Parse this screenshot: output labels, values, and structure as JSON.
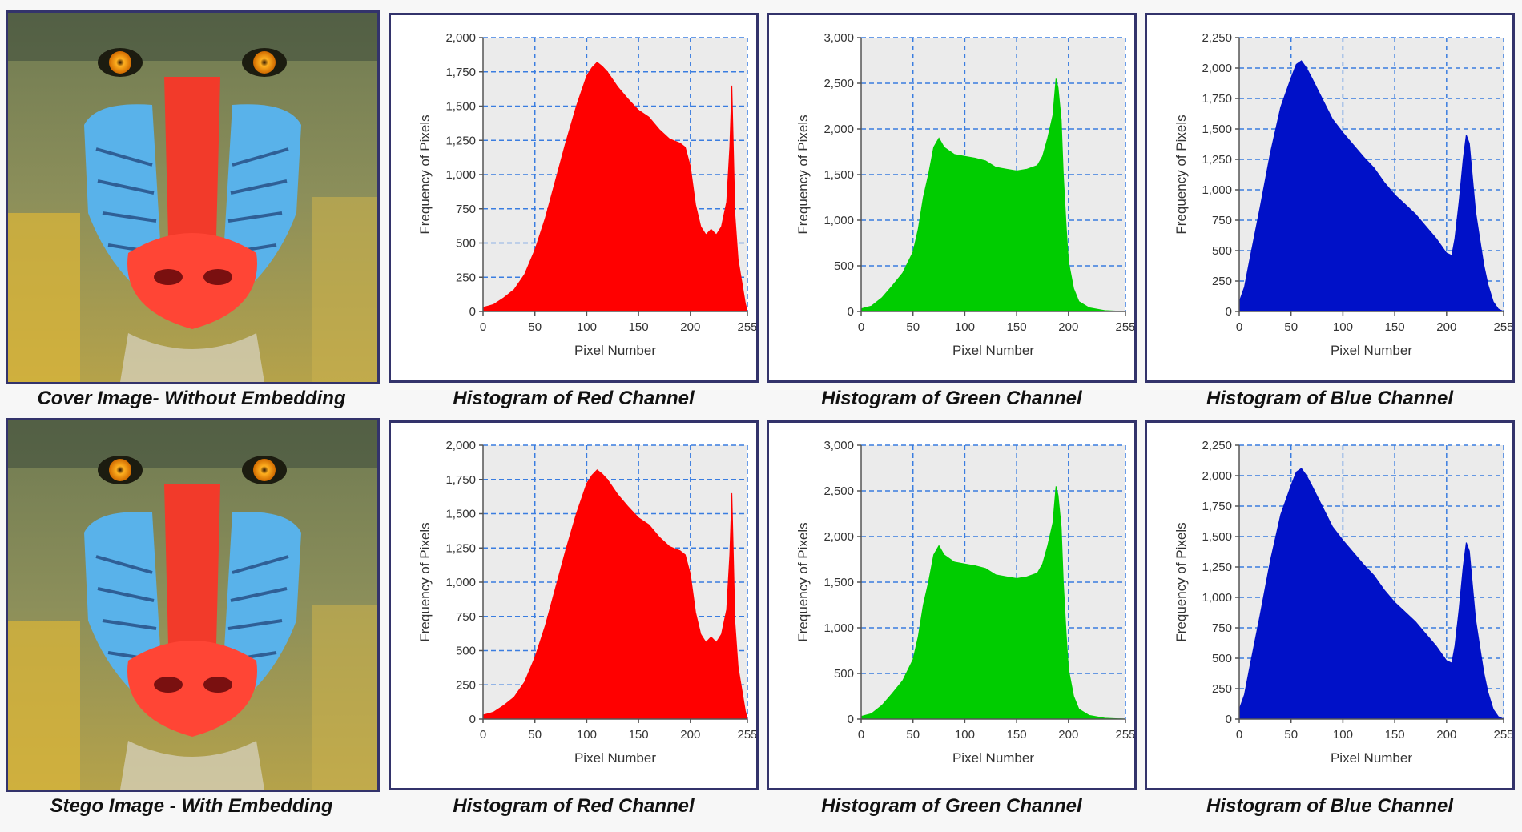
{
  "colors": {
    "red": "#ff0000",
    "green": "#00cc00",
    "blue": "#0011c8",
    "grid": "#3a7de0",
    "plot_bg": "#ebebeb"
  },
  "rows": [
    {
      "image_caption": "Cover Image- Without Embedding",
      "image_alt": "baboon-mandrill-face",
      "histograms": [
        {
          "caption": "Histogram of Red Channel",
          "channel": "red"
        },
        {
          "caption": "Histogram of Green Channel",
          "channel": "green"
        },
        {
          "caption": "Histogram of Blue Channel",
          "channel": "blue"
        }
      ]
    },
    {
      "image_caption": "Stego Image - With Embedding",
      "image_alt": "baboon-mandrill-face",
      "histograms": [
        {
          "caption": "Histogram of Red Channel",
          "channel": "red"
        },
        {
          "caption": "Histogram of Green Channel",
          "channel": "green"
        },
        {
          "caption": "Histogram of Blue Channel",
          "channel": "blue"
        }
      ]
    }
  ],
  "chart_data": [
    {
      "type": "area",
      "title": "Histogram of Red Channel",
      "xlabel": "Pixel Number",
      "ylabel": "Frequency of Pixels",
      "xlim": [
        0,
        255
      ],
      "ylim": [
        0,
        2000
      ],
      "xticks": [
        0,
        50,
        100,
        150,
        200,
        255
      ],
      "yticks": [
        0,
        250,
        500,
        750,
        1000,
        1250,
        1500,
        1750,
        2000
      ],
      "ytick_labels": [
        "0",
        "250",
        "500",
        "750",
        "1,000",
        "1,250",
        "1,500",
        "1,750",
        "2,000"
      ],
      "color": "#ff0000",
      "x": [
        0,
        5,
        10,
        20,
        30,
        40,
        50,
        60,
        70,
        80,
        90,
        100,
        105,
        110,
        115,
        120,
        130,
        140,
        150,
        160,
        170,
        180,
        190,
        195,
        200,
        205,
        210,
        215,
        220,
        225,
        230,
        235,
        238,
        240,
        243,
        246,
        250,
        253,
        255
      ],
      "y": [
        30,
        40,
        50,
        100,
        160,
        270,
        450,
        680,
        960,
        1240,
        1500,
        1720,
        1780,
        1820,
        1790,
        1750,
        1640,
        1550,
        1470,
        1420,
        1330,
        1260,
        1230,
        1200,
        1060,
        780,
        620,
        560,
        600,
        560,
        620,
        800,
        1200,
        1650,
        700,
        380,
        200,
        60,
        0
      ]
    },
    {
      "type": "area",
      "title": "Histogram of Green Channel",
      "xlabel": "Pixel Number",
      "ylabel": "Frequency of Pixels",
      "xlim": [
        0,
        255
      ],
      "ylim": [
        0,
        3000
      ],
      "xticks": [
        0,
        50,
        100,
        150,
        200,
        255
      ],
      "yticks": [
        0,
        500,
        1000,
        1500,
        2000,
        2500,
        3000
      ],
      "ytick_labels": [
        "0",
        "500",
        "1,000",
        "1,500",
        "2,000",
        "2,500",
        "3,000"
      ],
      "color": "#00cc00",
      "x": [
        0,
        10,
        20,
        30,
        40,
        50,
        55,
        60,
        65,
        70,
        75,
        80,
        90,
        100,
        110,
        120,
        130,
        140,
        150,
        160,
        170,
        175,
        180,
        185,
        188,
        190,
        193,
        195,
        198,
        200,
        205,
        210,
        220,
        235,
        255
      ],
      "y": [
        30,
        60,
        150,
        280,
        420,
        650,
        900,
        1250,
        1500,
        1800,
        1900,
        1800,
        1720,
        1700,
        1680,
        1650,
        1580,
        1560,
        1540,
        1560,
        1600,
        1700,
        1900,
        2150,
        2550,
        2450,
        2100,
        1500,
        900,
        550,
        250,
        110,
        40,
        10,
        0
      ]
    },
    {
      "type": "area",
      "title": "Histogram of Blue Channel",
      "xlabel": "Pixel Number",
      "ylabel": "Frequency of Pixels",
      "xlim": [
        0,
        255
      ],
      "ylim": [
        0,
        2250
      ],
      "xticks": [
        0,
        50,
        100,
        150,
        200,
        255
      ],
      "yticks": [
        0,
        250,
        500,
        750,
        1000,
        1250,
        1500,
        1750,
        2000,
        2250
      ],
      "ytick_labels": [
        "0",
        "250",
        "500",
        "750",
        "1,000",
        "1,250",
        "1,500",
        "1,750",
        "2,000",
        "2,250"
      ],
      "color": "#0011c8",
      "x": [
        0,
        5,
        10,
        20,
        30,
        40,
        50,
        55,
        60,
        65,
        70,
        80,
        90,
        100,
        110,
        120,
        130,
        140,
        150,
        160,
        170,
        180,
        190,
        200,
        205,
        208,
        212,
        216,
        219,
        222,
        225,
        228,
        232,
        236,
        240,
        245,
        250,
        255
      ],
      "y": [
        80,
        200,
        420,
        850,
        1300,
        1680,
        1920,
        2030,
        2060,
        2000,
        1920,
        1750,
        1580,
        1470,
        1370,
        1270,
        1180,
        1060,
        960,
        880,
        800,
        700,
        600,
        480,
        460,
        600,
        900,
        1250,
        1450,
        1380,
        1100,
        820,
        600,
        380,
        220,
        80,
        20,
        0
      ]
    },
    {
      "type": "area",
      "title": "Histogram of Red Channel",
      "xlabel": "Pixel Number",
      "ylabel": "Frequency of Pixels",
      "xlim": [
        0,
        255
      ],
      "ylim": [
        0,
        2000
      ],
      "xticks": [
        0,
        50,
        100,
        150,
        200,
        255
      ],
      "yticks": [
        0,
        250,
        500,
        750,
        1000,
        1250,
        1500,
        1750,
        2000
      ],
      "ytick_labels": [
        "0",
        "250",
        "500",
        "750",
        "1,000",
        "1,250",
        "1,500",
        "1,750",
        "2,000"
      ],
      "color": "#ff0000",
      "x": [
        0,
        5,
        10,
        20,
        30,
        40,
        50,
        60,
        70,
        80,
        90,
        100,
        105,
        110,
        115,
        120,
        130,
        140,
        150,
        160,
        170,
        180,
        190,
        195,
        200,
        205,
        210,
        215,
        220,
        225,
        230,
        235,
        238,
        240,
        243,
        246,
        250,
        253,
        255
      ],
      "y": [
        30,
        40,
        50,
        100,
        160,
        270,
        450,
        680,
        960,
        1240,
        1500,
        1720,
        1780,
        1820,
        1790,
        1750,
        1640,
        1550,
        1470,
        1420,
        1330,
        1260,
        1230,
        1200,
        1060,
        780,
        620,
        560,
        600,
        560,
        620,
        800,
        1200,
        1650,
        700,
        380,
        200,
        60,
        0
      ]
    },
    {
      "type": "area",
      "title": "Histogram of Green Channel",
      "xlabel": "Pixel Number",
      "ylabel": "Frequency of Pixels",
      "xlim": [
        0,
        255
      ],
      "ylim": [
        0,
        3000
      ],
      "xticks": [
        0,
        50,
        100,
        150,
        200,
        255
      ],
      "yticks": [
        0,
        500,
        1000,
        1500,
        2000,
        2500,
        3000
      ],
      "ytick_labels": [
        "0",
        "500",
        "1,000",
        "1,500",
        "2,000",
        "2,500",
        "3,000"
      ],
      "color": "#00cc00",
      "x": [
        0,
        10,
        20,
        30,
        40,
        50,
        55,
        60,
        65,
        70,
        75,
        80,
        90,
        100,
        110,
        120,
        130,
        140,
        150,
        160,
        170,
        175,
        180,
        185,
        188,
        190,
        193,
        195,
        198,
        200,
        205,
        210,
        220,
        235,
        255
      ],
      "y": [
        30,
        60,
        150,
        280,
        420,
        650,
        900,
        1250,
        1500,
        1800,
        1900,
        1800,
        1720,
        1700,
        1680,
        1650,
        1580,
        1560,
        1540,
        1560,
        1600,
        1700,
        1900,
        2150,
        2550,
        2450,
        2100,
        1500,
        900,
        550,
        250,
        110,
        40,
        10,
        0
      ]
    },
    {
      "type": "area",
      "title": "Histogram of Blue Channel",
      "xlabel": "Pixel Number",
      "ylabel": "Frequency of Pixels",
      "xlim": [
        0,
        255
      ],
      "ylim": [
        0,
        2250
      ],
      "xticks": [
        0,
        50,
        100,
        150,
        200,
        255
      ],
      "yticks": [
        0,
        250,
        500,
        750,
        1000,
        1250,
        1500,
        1750,
        2000,
        2250
      ],
      "ytick_labels": [
        "0",
        "250",
        "500",
        "750",
        "1,000",
        "1,250",
        "1,500",
        "1,750",
        "2,000",
        "2,250"
      ],
      "color": "#0011c8",
      "x": [
        0,
        5,
        10,
        20,
        30,
        40,
        50,
        55,
        60,
        65,
        70,
        80,
        90,
        100,
        110,
        120,
        130,
        140,
        150,
        160,
        170,
        180,
        190,
        200,
        205,
        208,
        212,
        216,
        219,
        222,
        225,
        228,
        232,
        236,
        240,
        245,
        250,
        255
      ],
      "y": [
        80,
        200,
        420,
        850,
        1300,
        1680,
        1920,
        2030,
        2060,
        2000,
        1920,
        1750,
        1580,
        1470,
        1370,
        1270,
        1180,
        1060,
        960,
        880,
        800,
        700,
        600,
        480,
        460,
        600,
        900,
        1250,
        1450,
        1380,
        1100,
        820,
        600,
        380,
        220,
        80,
        20,
        0
      ]
    }
  ]
}
